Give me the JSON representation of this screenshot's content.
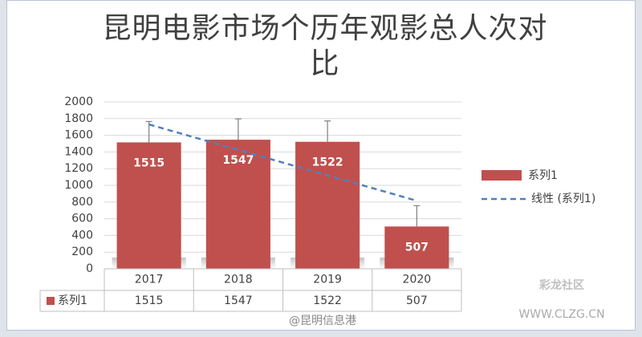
{
  "chart_data": {
    "type": "bar",
    "title": "昆明电影市场个历年观影总人次对比",
    "categories": [
      "2017",
      "2018",
      "2019",
      "2020"
    ],
    "series": [
      {
        "name": "系列1",
        "color": "#c0504d",
        "values": [
          1515,
          1547,
          1522,
          507
        ],
        "errors": [
          250,
          250,
          250,
          250
        ]
      }
    ],
    "trendline": {
      "name": "线性 (系列1)",
      "kind": "linear",
      "color": "#4f81bd"
    },
    "ylim": [
      0,
      2000
    ],
    "yticks": [
      0,
      200,
      400,
      600,
      800,
      1000,
      1200,
      1400,
      1600,
      1800,
      2000
    ],
    "grid": true,
    "legend": "right",
    "data_table": true
  },
  "watermark": {
    "weibo": "@昆明信息港",
    "site": "彩龙社区",
    "url": "WWW.CLZG.CN"
  }
}
